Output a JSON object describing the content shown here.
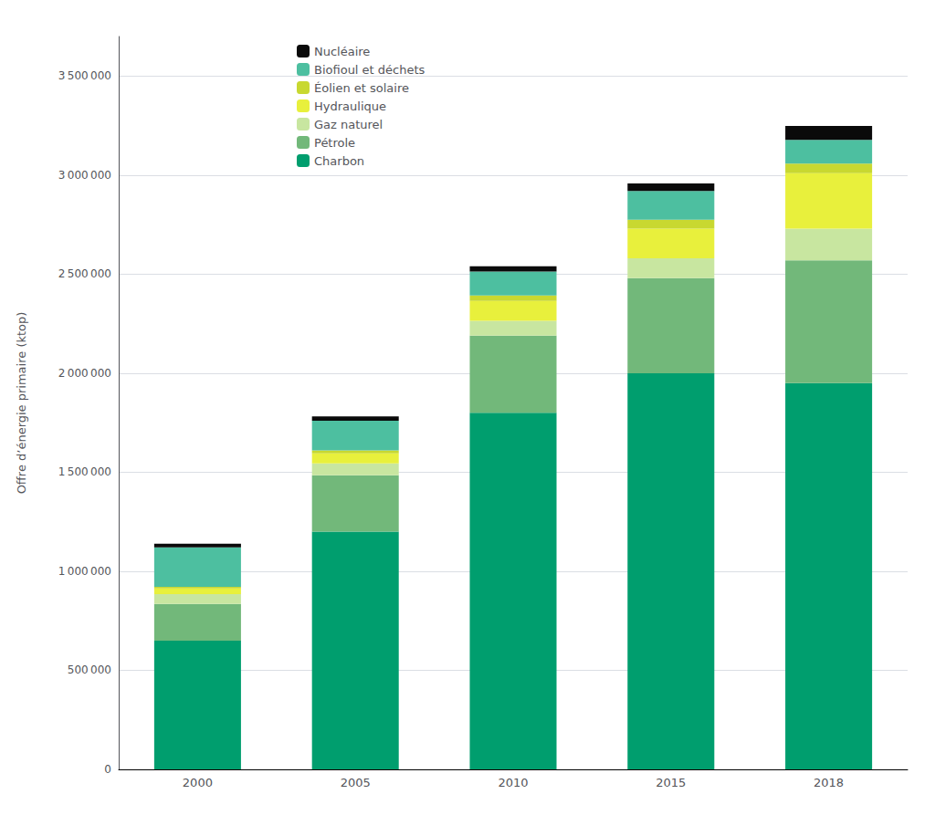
{
  "chart_data": {
    "type": "bar",
    "stacked": true,
    "grid": true,
    "legend": "upper left",
    "ylabel": "Offre d’énergie primaire (ktop)",
    "categories": [
      "2000",
      "2005",
      "2010",
      "2015",
      "2018"
    ],
    "series": [
      {
        "name": "Charbon",
        "color": "#009E6E",
        "values": [
          650000,
          1200000,
          1800000,
          2000000,
          1950000
        ]
      },
      {
        "name": "Pétrole",
        "color": "#72B87A",
        "values": [
          185000,
          285000,
          390000,
          480000,
          620000
        ]
      },
      {
        "name": "Gaz naturel",
        "color": "#C8E6A0",
        "values": [
          50000,
          60000,
          75000,
          100000,
          160000
        ]
      },
      {
        "name": "Hydraulique",
        "color": "#E8F03C",
        "values": [
          28000,
          50000,
          100000,
          150000,
          280000
        ]
      },
      {
        "name": "Éolien et solaire",
        "color": "#C8D830",
        "values": [
          8000,
          15000,
          28000,
          45000,
          48000
        ]
      },
      {
        "name": "Biofioul et déchets",
        "color": "#4DBFA0",
        "values": [
          200000,
          150000,
          120000,
          145000,
          120000
        ]
      },
      {
        "name": "Nucléaire",
        "color": "#0A0A0A",
        "values": [
          18000,
          22000,
          27000,
          38000,
          70000
        ]
      }
    ],
    "ylim": [
      0,
      3700000
    ],
    "yticks": [
      0,
      {
        "value": 500000,
        "label": "500 000"
      },
      {
        "value": 1000000,
        "label": "1 000 000"
      },
      {
        "value": 1500000,
        "label": "1 500 000"
      },
      {
        "value": 2000000,
        "label": "2 000 000"
      },
      {
        "value": 2500000,
        "label": "2 500 000"
      },
      {
        "value": 3000000,
        "label": "3 000 000"
      },
      {
        "value": 3500000,
        "label": "3 500 000"
      }
    ]
  }
}
